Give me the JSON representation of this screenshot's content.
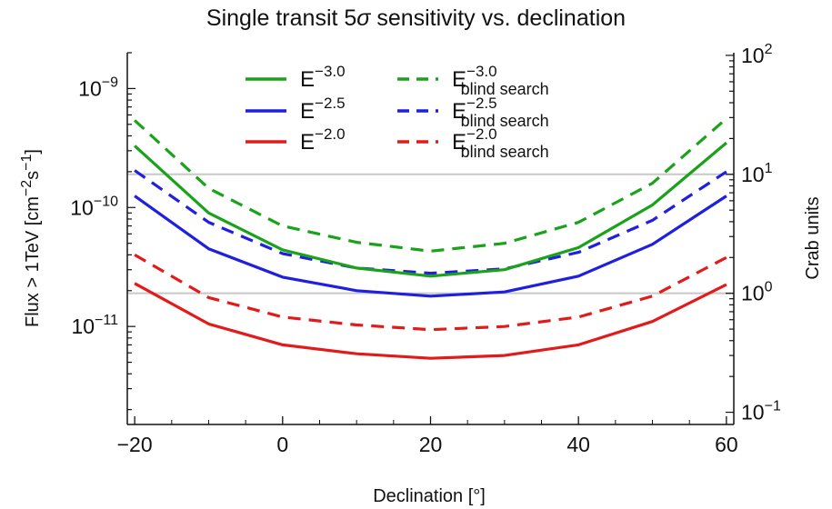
{
  "chart_data": {
    "type": "line",
    "title_parts": {
      "pre": "Single transit 5",
      "sigma": "σ",
      "post": " sensitivity vs. declination"
    },
    "xlabel": "Declination [°]",
    "ylabel": {
      "main": "Flux > 1TeV  [cm",
      "exp1": "−2",
      "mid": "s",
      "exp2": "−1",
      "end": "]"
    },
    "ylabel_right": "Crab units",
    "x": [
      -20,
      -10,
      0,
      10,
      20,
      30,
      40,
      50,
      60
    ],
    "xlim": [
      -21,
      61
    ],
    "xticks": [
      -20,
      0,
      20,
      40,
      60
    ],
    "xtick_labels": [
      "−20",
      "0",
      "20",
      "40",
      "60"
    ],
    "y_scale": "log",
    "ylim": [
      1.5e-12,
      2e-09
    ],
    "yticks_left": [
      {
        "value": 1e-09,
        "base": "10",
        "exp": "−9"
      },
      {
        "value": 1e-10,
        "base": "10",
        "exp": "−10"
      },
      {
        "value": 1e-11,
        "base": "10",
        "exp": "−11"
      }
    ],
    "right_axis": {
      "crab_unit_flux": 1.9e-11,
      "ticks": [
        {
          "value": 0.1,
          "base": "10",
          "exp": "−1"
        },
        {
          "value": 1,
          "base": "10",
          "exp": "0"
        },
        {
          "value": 10,
          "base": "10",
          "exp": "1"
        },
        {
          "value": 100,
          "base": "10",
          "exp": "2"
        }
      ]
    },
    "reference_lines_crab": [
      1,
      10
    ],
    "legend_placement": "top",
    "series": [
      {
        "name_base": "E",
        "name_exp": "−3.0",
        "name_sub": "",
        "color": "#1aa31a",
        "dashed": false,
        "values": [
          3.3e-10,
          9e-11,
          4.4e-11,
          3.1e-11,
          2.65e-11,
          3e-11,
          4.6e-11,
          1.05e-10,
          3.5e-10
        ]
      },
      {
        "name_base": "E",
        "name_exp": "−2.5",
        "name_sub": "",
        "color": "#1f1fe0",
        "dashed": false,
        "values": [
          1.25e-10,
          4.5e-11,
          2.6e-11,
          2e-11,
          1.8e-11,
          1.95e-11,
          2.65e-11,
          4.9e-11,
          1.25e-10
        ]
      },
      {
        "name_base": "E",
        "name_exp": "−2.0",
        "name_sub": "",
        "color": "#e31a1a",
        "dashed": false,
        "values": [
          2.3e-11,
          1.05e-11,
          7e-12,
          5.9e-12,
          5.4e-12,
          5.7e-12,
          7e-12,
          1.1e-11,
          2.25e-11
        ]
      },
      {
        "name_base": "E",
        "name_exp": "−3.0",
        "name_sub": "blind search",
        "color": "#1aa31a",
        "dashed": true,
        "values": [
          5.4e-10,
          1.45e-10,
          7e-11,
          5.1e-11,
          4.3e-11,
          5e-11,
          7.5e-11,
          1.6e-10,
          5.6e-10
        ]
      },
      {
        "name_base": "E",
        "name_exp": "−2.5",
        "name_sub": "blind search",
        "color": "#1f1fe0",
        "dashed": true,
        "values": [
          2.05e-10,
          7.5e-11,
          4.1e-11,
          3.1e-11,
          2.8e-11,
          3.05e-11,
          4.2e-11,
          7.8e-11,
          2e-10
        ]
      },
      {
        "name_base": "E",
        "name_exp": "−2.0",
        "name_sub": "blind search",
        "color": "#e31a1a",
        "dashed": true,
        "values": [
          4e-11,
          1.75e-11,
          1.2e-11,
          1.03e-11,
          9.4e-12,
          1e-11,
          1.2e-11,
          1.8e-11,
          3.8e-11
        ]
      }
    ]
  }
}
